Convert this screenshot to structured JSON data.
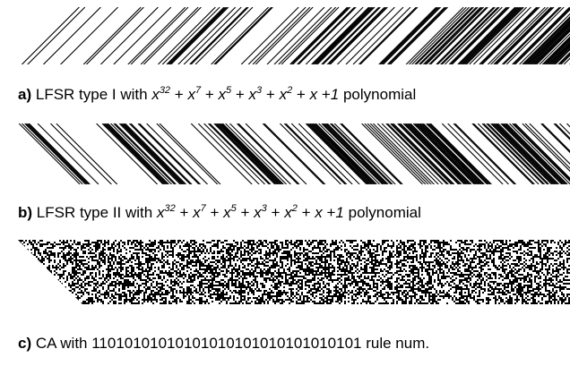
{
  "captions": [
    {
      "label": "a)",
      "text": "LFSR type I with",
      "operator": "+",
      "terms": [
        {
          "base": "x",
          "sup": "32"
        },
        {
          "base": "x",
          "sup": "7"
        },
        {
          "base": "x",
          "sup": "5"
        },
        {
          "base": "x",
          "sup": "3"
        },
        {
          "base": "x",
          "sup": "2"
        },
        {
          "base": "x"
        },
        {
          "base": "1"
        }
      ],
      "suffix": "polynomial"
    },
    {
      "label": "b)",
      "text": "LFSR type II with",
      "operator": "+",
      "terms": [
        {
          "base": "x",
          "sup": "32"
        },
        {
          "base": "x",
          "sup": "7"
        },
        {
          "base": "x",
          "sup": "5"
        },
        {
          "base": "x",
          "sup": "3"
        },
        {
          "base": "x",
          "sup": "2"
        },
        {
          "base": "x"
        },
        {
          "base": "1"
        }
      ],
      "suffix": "polynomial"
    },
    {
      "label": "c)",
      "text": "CA with 11010101010101010101010101010101 rule num."
    }
  ]
}
